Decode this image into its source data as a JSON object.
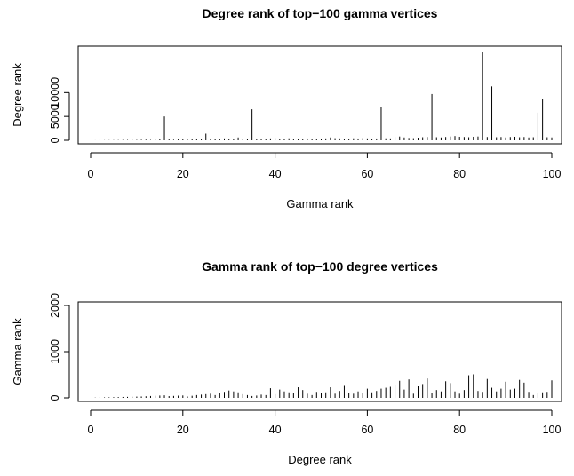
{
  "chart_data": [
    {
      "type": "bar",
      "title": "Degree rank of top−100 gamma vertices",
      "xlabel": "Gamma rank",
      "ylabel": "Degree rank",
      "xlim": [
        0,
        100
      ],
      "ylim": [
        0,
        19000
      ],
      "xticks": [
        "0",
        "20",
        "40",
        "60",
        "80",
        "100"
      ],
      "yticks": [
        "0",
        "5000",
        "10000"
      ],
      "x": [
        1,
        2,
        3,
        4,
        5,
        6,
        7,
        8,
        9,
        10,
        11,
        12,
        13,
        14,
        15,
        16,
        17,
        18,
        19,
        20,
        21,
        22,
        23,
        24,
        25,
        26,
        27,
        28,
        29,
        30,
        31,
        32,
        33,
        34,
        35,
        36,
        37,
        38,
        39,
        40,
        41,
        42,
        43,
        44,
        45,
        46,
        47,
        48,
        49,
        50,
        51,
        52,
        53,
        54,
        55,
        56,
        57,
        58,
        59,
        60,
        61,
        62,
        63,
        64,
        65,
        66,
        67,
        68,
        69,
        70,
        71,
        72,
        73,
        74,
        75,
        76,
        77,
        78,
        79,
        80,
        81,
        82,
        83,
        84,
        85,
        86,
        87,
        88,
        89,
        90,
        91,
        92,
        93,
        94,
        95,
        96,
        97,
        98,
        99,
        100
      ],
      "values": [
        10,
        20,
        30,
        40,
        50,
        60,
        70,
        80,
        100,
        90,
        120,
        140,
        80,
        150,
        200,
        5000,
        180,
        120,
        200,
        240,
        150,
        250,
        300,
        180,
        1400,
        200,
        220,
        350,
        400,
        250,
        300,
        600,
        280,
        300,
        6500,
        350,
        300,
        250,
        400,
        450,
        300,
        280,
        420,
        350,
        300,
        250,
        380,
        300,
        280,
        320,
        400,
        600,
        450,
        400,
        300,
        350,
        420,
        380,
        450,
        400,
        350,
        380,
        7000,
        420,
        400,
        700,
        800,
        600,
        500,
        450,
        550,
        650,
        700,
        9700,
        650,
        600,
        700,
        800,
        900,
        750,
        700,
        650,
        750,
        800,
        18500,
        700,
        11300,
        650,
        700,
        600,
        700,
        750,
        650,
        700,
        600,
        650,
        5800,
        8600,
        650,
        600
      ]
    },
    {
      "type": "bar",
      "title": "Gamma rank of top−100 degree vertices",
      "xlabel": "Degree rank",
      "ylabel": "Gamma rank",
      "xlim": [
        0,
        100
      ],
      "ylim": [
        0,
        2000
      ],
      "xticks": [
        "0",
        "20",
        "40",
        "60",
        "80",
        "100"
      ],
      "yticks": [
        "0",
        "1000",
        "2000"
      ],
      "x": [
        1,
        2,
        3,
        4,
        5,
        6,
        7,
        8,
        9,
        10,
        11,
        12,
        13,
        14,
        15,
        16,
        17,
        18,
        19,
        20,
        21,
        22,
        23,
        24,
        25,
        26,
        27,
        28,
        29,
        30,
        31,
        32,
        33,
        34,
        35,
        36,
        37,
        38,
        39,
        40,
        41,
        42,
        43,
        44,
        45,
        46,
        47,
        48,
        49,
        50,
        51,
        52,
        53,
        54,
        55,
        56,
        57,
        58,
        59,
        60,
        61,
        62,
        63,
        64,
        65,
        66,
        67,
        68,
        69,
        70,
        71,
        72,
        73,
        74,
        75,
        76,
        77,
        78,
        79,
        80,
        81,
        82,
        83,
        84,
        85,
        86,
        87,
        88,
        89,
        90,
        91,
        92,
        93,
        94,
        95,
        96,
        97,
        98,
        99,
        100
      ],
      "values": [
        5,
        8,
        10,
        12,
        15,
        18,
        20,
        22,
        25,
        28,
        30,
        35,
        40,
        45,
        50,
        55,
        38,
        42,
        48,
        52,
        30,
        45,
        60,
        70,
        80,
        90,
        60,
        100,
        130,
        160,
        140,
        120,
        80,
        60,
        40,
        50,
        70,
        60,
        210,
        80,
        180,
        140,
        120,
        100,
        230,
        170,
        90,
        60,
        130,
        110,
        120,
        230,
        90,
        150,
        260,
        110,
        90,
        140,
        100,
        200,
        120,
        150,
        200,
        220,
        240,
        280,
        370,
        180,
        400,
        90,
        250,
        300,
        420,
        110,
        170,
        140,
        360,
        320,
        140,
        90,
        170,
        490,
        510,
        150,
        130,
        410,
        220,
        140,
        200,
        350,
        180,
        200,
        390,
        330,
        130,
        60,
        100,
        120,
        130,
        380
      ]
    }
  ]
}
